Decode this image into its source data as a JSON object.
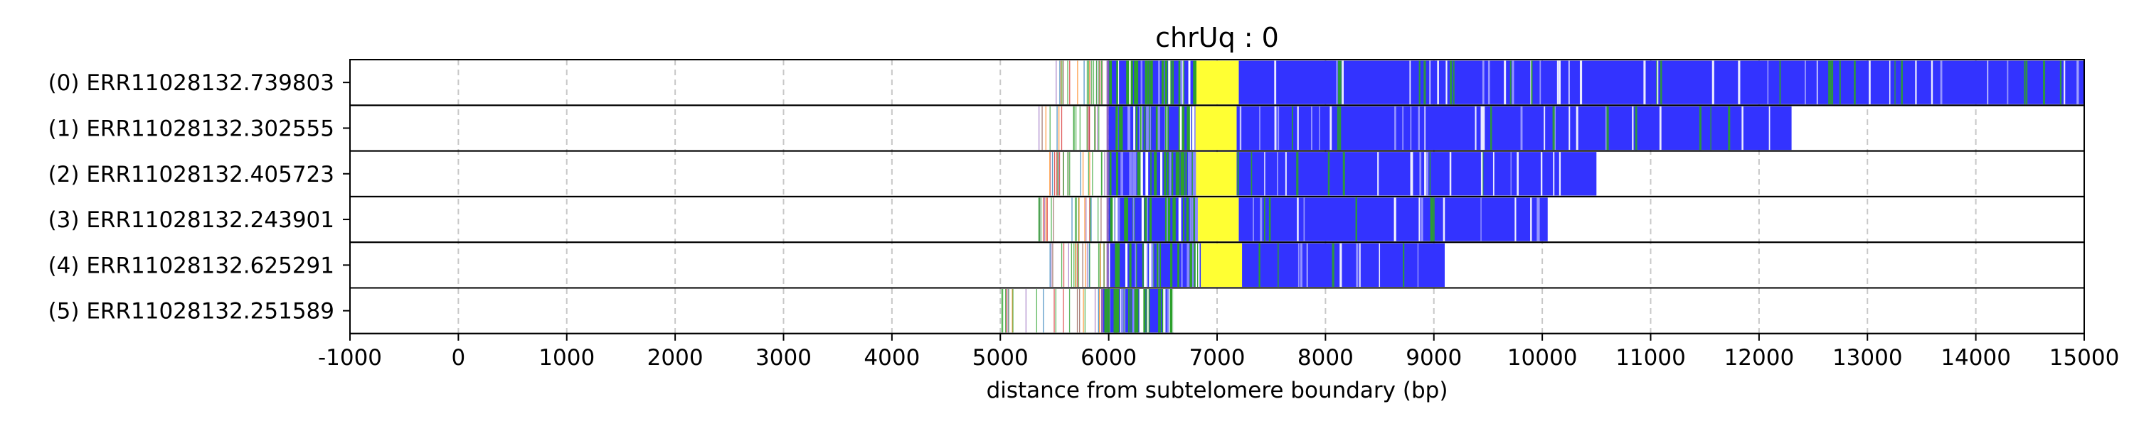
{
  "chart_data": {
    "type": "read-track",
    "title": "chrUq : 0",
    "xlabel": "distance from subtelomere boundary (bp)",
    "ylabel": "",
    "xlim": [
      -1000,
      15000
    ],
    "xticks": [
      -1000,
      0,
      1000,
      2000,
      3000,
      4000,
      5000,
      6000,
      7000,
      8000,
      9000,
      10000,
      11000,
      12000,
      13000,
      14000,
      15000
    ],
    "xtick_labels": [
      "-1000",
      "0",
      "1000",
      "2000",
      "3000",
      "4000",
      "5000",
      "6000",
      "7000",
      "8000",
      "9000",
      "10000",
      "11000",
      "12000",
      "13000",
      "14000",
      "15000"
    ],
    "grid": "x-dashed",
    "colors": {
      "repeat": "#3333ff",
      "insert": "#ffff33",
      "variant": "#2ca02c",
      "gap": "#ffffff",
      "boundary": "#d62728",
      "subtelomere_marker": "#9467bd",
      "grid": "#c8c8c8"
    },
    "reads": [
      {
        "label": "(0) ERR11028132.739803",
        "scatter_start": 5450,
        "dense_start": 6000,
        "insert": [
          6800,
          7200
        ],
        "end": 15000
      },
      {
        "label": "(1) ERR11028132.302555",
        "scatter_start": 5350,
        "dense_start": 6000,
        "insert": [
          6800,
          7180
        ],
        "end": 12300
      },
      {
        "label": "(2) ERR11028132.405723",
        "scatter_start": 5350,
        "dense_start": 6000,
        "insert": [
          6800,
          7180
        ],
        "end": 10500
      },
      {
        "label": "(3) ERR11028132.243901",
        "scatter_start": 5350,
        "dense_start": 6000,
        "insert": [
          6800,
          7200
        ],
        "end": 10050
      },
      {
        "label": "(4) ERR11028132.625291",
        "scatter_start": 5450,
        "dense_start": 6000,
        "insert": [
          6850,
          7230
        ],
        "end": 9100
      },
      {
        "label": "(5) ERR11028132.251589",
        "scatter_start": 4990,
        "dense_start": 5950,
        "insert": null,
        "end": 6600
      }
    ]
  }
}
